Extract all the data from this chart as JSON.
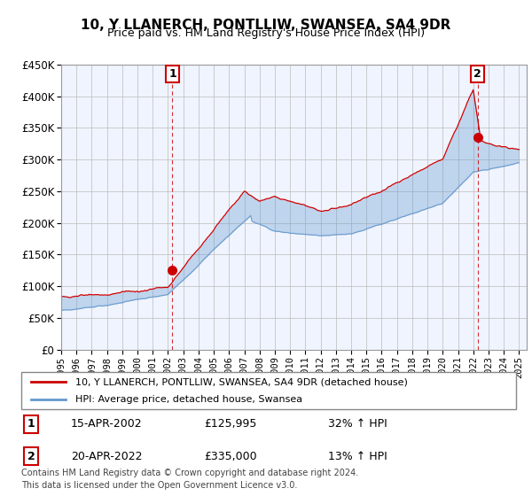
{
  "title": "10, Y LLANERCH, PONTLLIW, SWANSEA, SA4 9DR",
  "subtitle": "Price paid vs. HM Land Registry's House Price Index (HPI)",
  "legend_label_red": "10, Y LLANERCH, PONTLLIW, SWANSEA, SA4 9DR (detached house)",
  "legend_label_blue": "HPI: Average price, detached house, Swansea",
  "sale1_date": "15-APR-2002",
  "sale1_price": "£125,995",
  "sale1_pct": "32% ↑ HPI",
  "sale2_date": "20-APR-2022",
  "sale2_price": "£335,000",
  "sale2_pct": "13% ↑ HPI",
  "footer": "Contains HM Land Registry data © Crown copyright and database right 2024.\nThis data is licensed under the Open Government Licence v3.0.",
  "red_color": "#cc0000",
  "blue_color": "#6699cc",
  "fill_color": "#ddeeff",
  "vline_color": "#cc0000",
  "marker1_x": 2002.29,
  "marker1_y": 125995,
  "marker2_x": 2022.29,
  "marker2_y": 335000,
  "ylim": [
    0,
    450000
  ],
  "xlim": [
    1995.0,
    2025.5
  ],
  "yticks": [
    0,
    50000,
    100000,
    150000,
    200000,
    250000,
    300000,
    350000,
    400000,
    450000
  ],
  "xticks": [
    1995,
    1996,
    1997,
    1998,
    1999,
    2000,
    2001,
    2002,
    2003,
    2004,
    2005,
    2006,
    2007,
    2008,
    2009,
    2010,
    2011,
    2012,
    2013,
    2014,
    2015,
    2016,
    2017,
    2018,
    2019,
    2020,
    2021,
    2022,
    2023,
    2024,
    2025
  ],
  "bg_color": "#f0f4ff"
}
